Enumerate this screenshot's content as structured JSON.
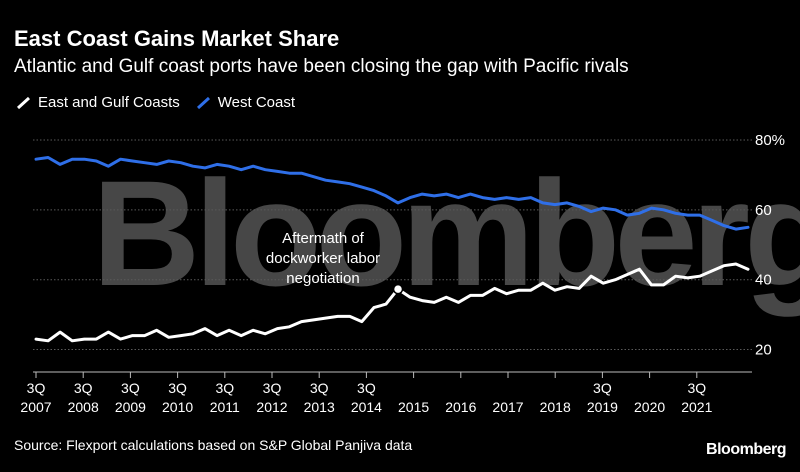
{
  "header": {
    "title": "East Coast Gains Market Share",
    "subtitle": "Atlantic and Gulf coast ports have been closing the gap with Pacific rivals"
  },
  "legend": {
    "items": [
      {
        "label": "East and Gulf Coasts",
        "color": "#ffffff"
      },
      {
        "label": "West Coast",
        "color": "#2f6fe8"
      }
    ]
  },
  "footer": {
    "source": "Source: Flexport calculations based on S&P Global Panjiva data",
    "brand": "Bloomberg"
  },
  "watermark": "Bloomberg",
  "chart_data": {
    "type": "line",
    "title": "East Coast Gains Market Share",
    "subtitle": "Atlantic and Gulf coast ports have been closing the gap with Pacific rivals",
    "xlabel": "",
    "ylabel": "",
    "ylim": [
      15,
      80
    ],
    "y_ticks": [
      {
        "value": 80,
        "label": "80%"
      },
      {
        "value": 60,
        "label": "60"
      },
      {
        "value": 40,
        "label": "40"
      },
      {
        "value": 20,
        "label": "20"
      }
    ],
    "x_ticks": [
      {
        "quarter": "3Q",
        "year": "2007"
      },
      {
        "quarter": "3Q",
        "year": "2008"
      },
      {
        "quarter": "3Q",
        "year": "2009"
      },
      {
        "quarter": "3Q",
        "year": "2010"
      },
      {
        "quarter": "3Q",
        "year": "2011"
      },
      {
        "quarter": "3Q",
        "year": "2012"
      },
      {
        "quarter": "3Q",
        "year": "2013"
      },
      {
        "quarter": "3Q",
        "year": "2014"
      },
      {
        "quarter": "",
        "year": "2015"
      },
      {
        "quarter": "",
        "year": "2016"
      },
      {
        "quarter": "",
        "year": "2017"
      },
      {
        "quarter": "",
        "year": "2018"
      },
      {
        "quarter": "3Q",
        "year": "2019"
      },
      {
        "quarter": "",
        "year": "2020"
      },
      {
        "quarter": "3Q",
        "year": "2021"
      }
    ],
    "grid": true,
    "legend_position": "top-left",
    "series": [
      {
        "name": "East and Gulf Coasts",
        "color": "#ffffff",
        "values": [
          23,
          22.5,
          25,
          22.5,
          23,
          23,
          25,
          23,
          24,
          24,
          25.5,
          23.5,
          24,
          24.5,
          26,
          24,
          25.5,
          24,
          25.5,
          24.5,
          26,
          26.5,
          28,
          28.5,
          29,
          29.5,
          29.5,
          28,
          32,
          33,
          37.3,
          35,
          34,
          33.5,
          35,
          33.5,
          35.5,
          35.5,
          37.5,
          36,
          37,
          37,
          39,
          37,
          38,
          37.5,
          41,
          39,
          40,
          41.5,
          43,
          38.5,
          38.5,
          41,
          40.5,
          41,
          42.5,
          44,
          44.5,
          43
        ]
      },
      {
        "name": "West Coast",
        "color": "#2f6fe8",
        "values": [
          74.5,
          75,
          73,
          74.5,
          74.5,
          74,
          72.5,
          74.5,
          74,
          73.5,
          73,
          74,
          73.5,
          72.5,
          72,
          73,
          72.5,
          71.5,
          72.5,
          71.5,
          71,
          70.5,
          70.5,
          69.5,
          68.5,
          68,
          67.5,
          66.5,
          65.5,
          64,
          62,
          63.5,
          64.5,
          64,
          64.5,
          63.5,
          64.5,
          63.5,
          63,
          63.5,
          63,
          63.5,
          62,
          61.5,
          62,
          61,
          59.5,
          60.5,
          60,
          58.5,
          59,
          60.5,
          60,
          59,
          58.5,
          58.5,
          57,
          55.5,
          54.5,
          55
        ]
      }
    ],
    "annotations": [
      {
        "text_lines": [
          "Aftermath of",
          "dockworker labor",
          "negotiation"
        ],
        "series": "East and Gulf Coasts",
        "point_index": 30
      }
    ]
  }
}
